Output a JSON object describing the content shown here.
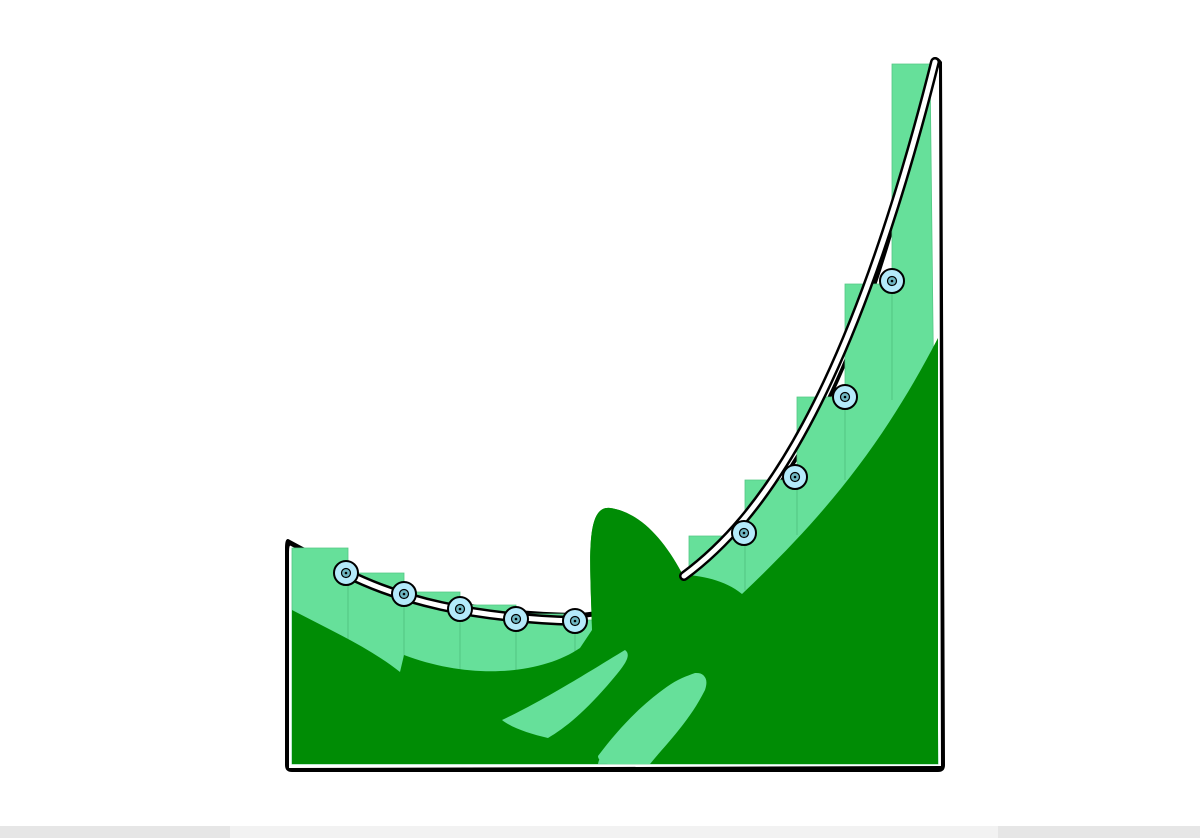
{
  "scene": {
    "background_color": "#ffffff",
    "page_color": "#f2f2f2",
    "track_fill_light": "#66e09a",
    "track_fill_dark": "#008c05",
    "rail_color": "#ffffff",
    "outline_color": "#000000",
    "marker_fill": "#b4eafa",
    "marker_count": 10,
    "icons": [
      "bowl-track-shape",
      "rail-line",
      "ring-marker"
    ]
  }
}
